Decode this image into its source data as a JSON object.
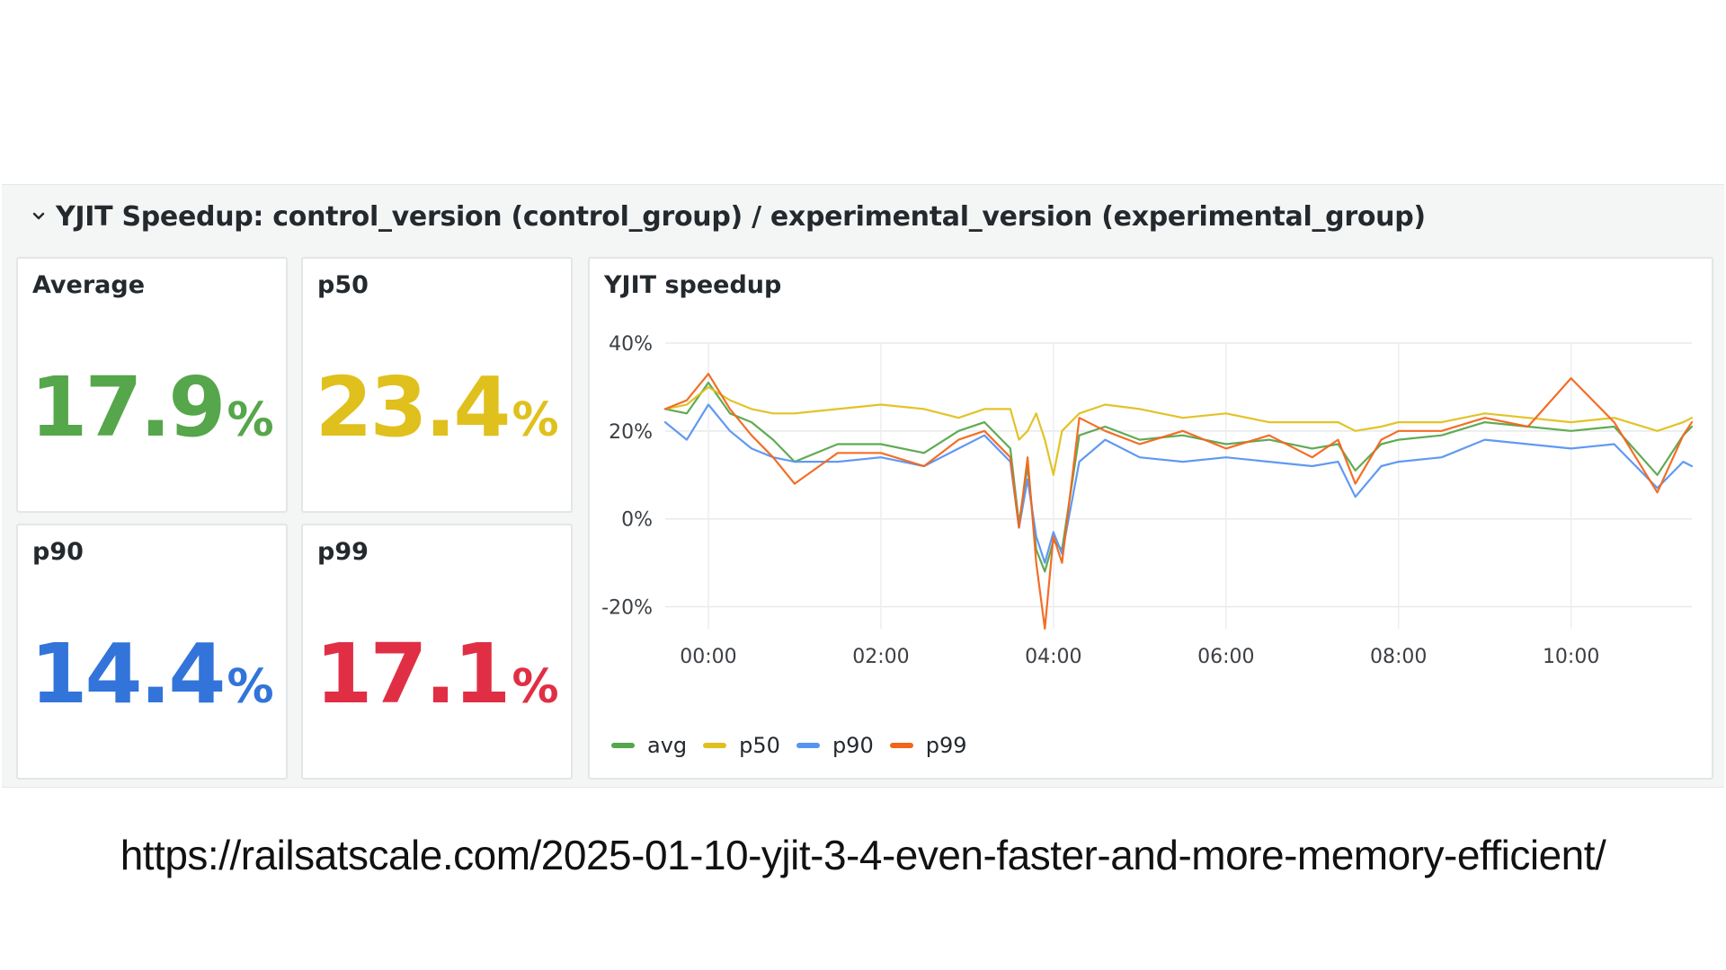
{
  "row": {
    "title": "YJIT Speedup: control_version (control_group) / experimental_version (experimental_group)"
  },
  "stats": [
    {
      "title": "Average",
      "value": "17.9",
      "unit": "%",
      "color": "#56a64b"
    },
    {
      "title": "p50",
      "value": "23.4",
      "unit": "%",
      "color": "#e0c01c"
    },
    {
      "title": "p90",
      "value": "14.4",
      "unit": "%",
      "color": "#3274d9"
    },
    {
      "title": "p99",
      "value": "17.1",
      "unit": "%",
      "color": "#e02f44"
    }
  ],
  "chart_panel": {
    "title": "YJIT speedup"
  },
  "chart_data": {
    "type": "line",
    "title": "YJIT speedup",
    "x_ticks": [
      "00:00",
      "02:00",
      "04:00",
      "06:00",
      "08:00",
      "10:00"
    ],
    "x_range_hours": [
      -0.5,
      11.4
    ],
    "y_ticks": [
      "40%",
      "20%",
      "0%",
      "-20%"
    ],
    "ylim": [
      -25,
      40
    ],
    "grid": true,
    "legend_placement": "bottom-left",
    "x_hours": [
      -0.5,
      -0.25,
      0,
      0.25,
      0.5,
      0.75,
      1,
      1.5,
      2,
      2.5,
      2.9,
      3.2,
      3.5,
      3.6,
      3.7,
      3.8,
      3.9,
      4.0,
      4.1,
      4.3,
      4.6,
      5.0,
      5.5,
      6,
      6.5,
      7,
      7.3,
      7.5,
      7.8,
      8,
      8.5,
      9,
      9.5,
      10,
      10.5,
      11,
      11.3,
      11.4
    ],
    "series": [
      {
        "name": "avg",
        "color": "#56a64b",
        "values": [
          25,
          24,
          31,
          24,
          22,
          18,
          13,
          17,
          17,
          15,
          20,
          22,
          16,
          -1,
          12,
          -7,
          -12,
          -5,
          -7,
          19,
          21,
          18,
          19,
          17,
          18,
          16,
          17,
          11,
          17,
          18,
          19,
          22,
          21,
          20,
          21,
          10,
          19,
          21
        ]
      },
      {
        "name": "p50",
        "color": "#e0c01c",
        "values": [
          25,
          26,
          30,
          27,
          25,
          24,
          24,
          25,
          26,
          25,
          23,
          25,
          25,
          18,
          20,
          24,
          18,
          10,
          20,
          24,
          26,
          25,
          23,
          24,
          22,
          22,
          22,
          20,
          21,
          22,
          22,
          24,
          23,
          22,
          23,
          20,
          22,
          23
        ]
      },
      {
        "name": "p90",
        "color": "#5794f2",
        "values": [
          22,
          18,
          26,
          20,
          16,
          14,
          13,
          13,
          14,
          12,
          16,
          19,
          13,
          -2,
          9,
          -4,
          -10,
          -3,
          -8,
          13,
          18,
          14,
          13,
          14,
          13,
          12,
          13,
          5,
          12,
          13,
          14,
          18,
          17,
          16,
          17,
          7,
          13,
          12
        ]
      },
      {
        "name": "p99",
        "color": "#f2661b",
        "values": [
          25,
          27,
          33,
          25,
          19,
          14,
          8,
          15,
          15,
          12,
          18,
          20,
          14,
          -2,
          14,
          -10,
          -25,
          -4,
          -10,
          23,
          20,
          17,
          20,
          16,
          19,
          14,
          18,
          8,
          18,
          20,
          20,
          23,
          21,
          32,
          22,
          6,
          19,
          22
        ]
      }
    ]
  },
  "url": "https://railsatscale.com/2025-01-10-yjit-3-4-even-faster-and-more-memory-efficient/"
}
